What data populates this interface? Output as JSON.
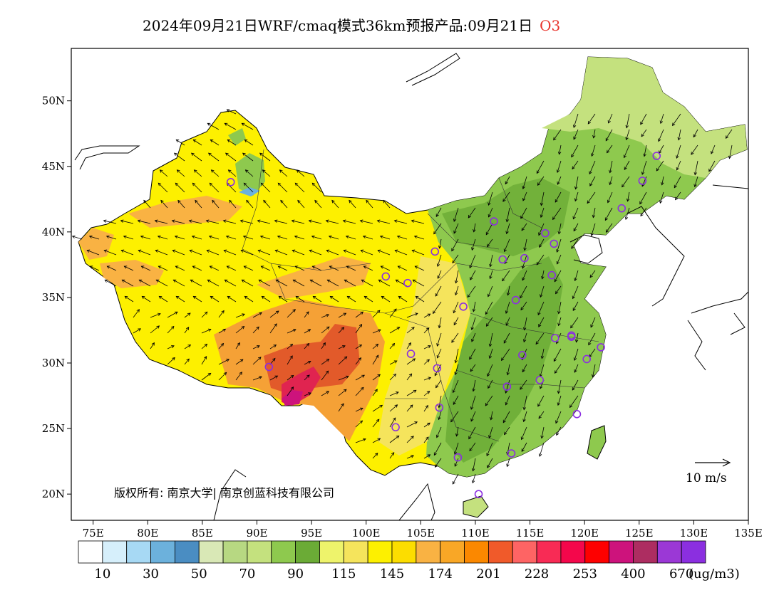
{
  "title": {
    "prefix": "2024年09月21日WRF/cmaq模式36km预报产品:09月21日",
    "species": "O3",
    "species_color": "#e8322a"
  },
  "axes": {
    "lon_range": [
      73,
      135
    ],
    "lat_range": [
      18,
      54
    ],
    "x_ticks": [
      "75E",
      "80E",
      "85E",
      "90E",
      "95E",
      "100E",
      "105E",
      "110E",
      "115E",
      "120E",
      "125E",
      "130E",
      "135E"
    ],
    "x_tick_values": [
      75,
      80,
      85,
      90,
      95,
      100,
      105,
      110,
      115,
      120,
      125,
      130,
      135
    ],
    "y_ticks": [
      "20N",
      "25N",
      "30N",
      "35N",
      "40N",
      "45N",
      "50N"
    ],
    "y_tick_values": [
      20,
      25,
      30,
      35,
      40,
      45,
      50
    ]
  },
  "colorbar": {
    "colors": [
      "#ffffff",
      "#d6effb",
      "#a7d9f4",
      "#6cb1dc",
      "#4a8dc2",
      "#d9e8b6",
      "#b7d882",
      "#c4e17e",
      "#8ec94e",
      "#6bab36",
      "#eef36b",
      "#f5e45c",
      "#fdf000",
      "#fcdd00",
      "#f9b243",
      "#f9a726",
      "#fb8800",
      "#f05a2a",
      "#fe6464",
      "#f82b55",
      "#f4074b",
      "#fe0000",
      "#cd137c",
      "#ad2d61",
      "#9b38d6",
      "#8b2fe0"
    ],
    "labels": [
      "10",
      "30",
      "50",
      "70",
      "90",
      "115",
      "145",
      "174",
      "201",
      "228",
      "253",
      "400",
      "670"
    ],
    "unit": "(ug/m3)"
  },
  "vector_scale": {
    "label": "10 m/s"
  },
  "copyright": "版权所有: 南京大学| 南京创蓝科技有限公司",
  "map": {
    "field_colors": {
      "orange": "#f9b243",
      "dark_orange": "#f5a136",
      "red_orange": "#e25a2a",
      "hot_red": "#e02450",
      "magenta": "#cd137c",
      "yellow": "#fdf000",
      "deep_yellow": "#fcdd00",
      "pale_yellow": "#f5e45c",
      "light_green": "#c4e17e",
      "mid_green": "#8ec94e",
      "dark_green": "#6bab36",
      "lake_blue": "#6cb1dc"
    },
    "stations": [
      {
        "lon": 87.6,
        "lat": 43.8
      },
      {
        "lon": 91.1,
        "lat": 29.7
      },
      {
        "lon": 101.8,
        "lat": 36.6
      },
      {
        "lon": 103.8,
        "lat": 36.1
      },
      {
        "lon": 106.3,
        "lat": 38.5
      },
      {
        "lon": 104.1,
        "lat": 30.7
      },
      {
        "lon": 106.5,
        "lat": 29.6
      },
      {
        "lon": 102.7,
        "lat": 25.1
      },
      {
        "lon": 106.7,
        "lat": 26.6
      },
      {
        "lon": 108.9,
        "lat": 34.3
      },
      {
        "lon": 111.7,
        "lat": 40.8
      },
      {
        "lon": 112.5,
        "lat": 37.9
      },
      {
        "lon": 114.5,
        "lat": 38.0
      },
      {
        "lon": 116.4,
        "lat": 39.9
      },
      {
        "lon": 117.2,
        "lat": 39.1
      },
      {
        "lon": 117.0,
        "lat": 36.7
      },
      {
        "lon": 113.7,
        "lat": 34.8
      },
      {
        "lon": 114.3,
        "lat": 30.6
      },
      {
        "lon": 112.9,
        "lat": 28.2
      },
      {
        "lon": 115.9,
        "lat": 28.7
      },
      {
        "lon": 117.3,
        "lat": 31.9
      },
      {
        "lon": 118.8,
        "lat": 32.1
      },
      {
        "lon": 120.2,
        "lat": 30.3
      },
      {
        "lon": 121.5,
        "lat": 31.2
      },
      {
        "lon": 119.3,
        "lat": 26.1
      },
      {
        "lon": 113.3,
        "lat": 23.1
      },
      {
        "lon": 108.4,
        "lat": 22.8
      },
      {
        "lon": 110.3,
        "lat": 20.0
      },
      {
        "lon": 123.4,
        "lat": 41.8
      },
      {
        "lon": 125.3,
        "lat": 43.9
      },
      {
        "lon": 126.6,
        "lat": 45.8
      },
      {
        "lon": 118.8,
        "lat": 32.0
      }
    ]
  }
}
